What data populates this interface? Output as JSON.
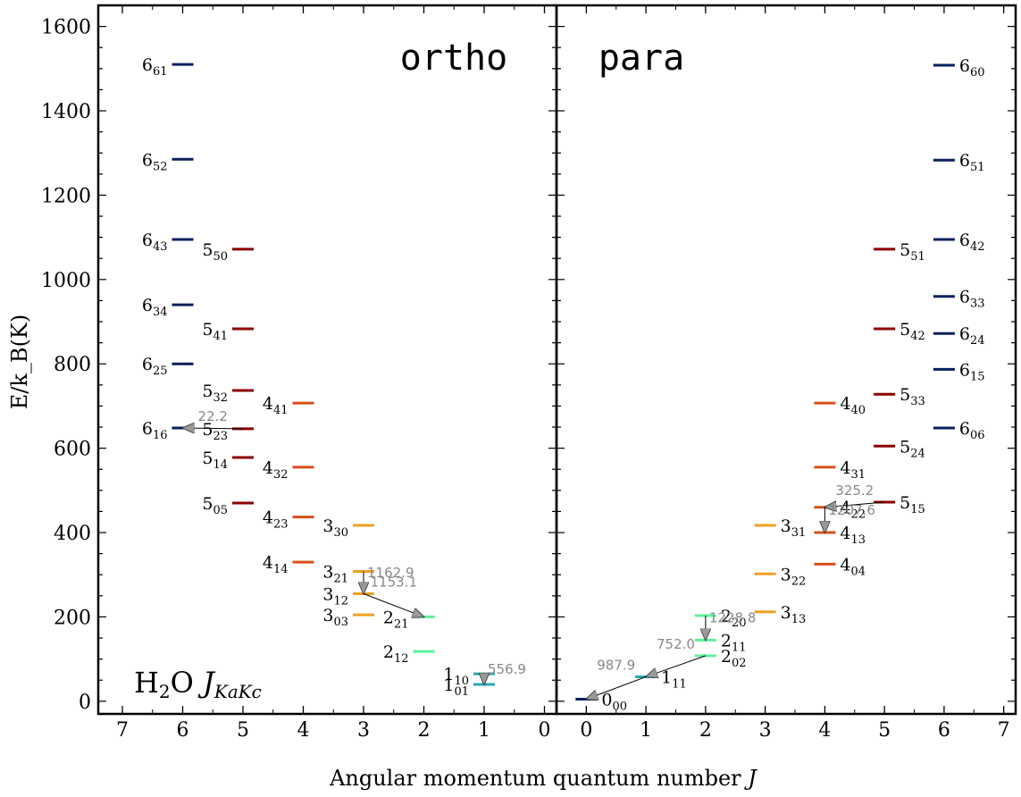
{
  "chart_data": {
    "type": "energy-level-diagram",
    "xlabel_prefix": "Angular momentum quantum number ",
    "xlabel_var": "J",
    "ylabel": "E/k_B(K)",
    "ylim": [
      -30,
      1650
    ],
    "yticks": [
      "0",
      "200",
      "400",
      "600",
      "800",
      "1000",
      "1200",
      "1400",
      "1600"
    ],
    "molecule_label": {
      "main": "H",
      "sub2": "2",
      "main2": "O",
      "j": "J",
      "sub": "KaKc"
    },
    "colors": {
      "6": "#0a1f5c",
      "5": "#8b0000",
      "4": "#d6501a",
      "3": "#f0a020",
      "2": "#5cf29b",
      "1": "#2aa8b0",
      "0": "#0a1f5c"
    },
    "panels": [
      {
        "name": "ortho",
        "title": "ortho",
        "xlim": [
          7.4,
          -0.2
        ],
        "xticks": [
          "7",
          "6",
          "5",
          "4",
          "3",
          "2",
          "1",
          "0"
        ],
        "levels": [
          {
            "J": 6,
            "Ka": "6",
            "Kc": "1",
            "E": 1510,
            "side": "left"
          },
          {
            "J": 6,
            "Ka": "5",
            "Kc": "2",
            "E": 1285,
            "side": "left"
          },
          {
            "J": 6,
            "Ka": "4",
            "Kc": "3",
            "E": 1095,
            "side": "left"
          },
          {
            "J": 6,
            "Ka": "3",
            "Kc": "4",
            "E": 940,
            "side": "left"
          },
          {
            "J": 6,
            "Ka": "2",
            "Kc": "5",
            "E": 800,
            "side": "left"
          },
          {
            "J": 6,
            "Ka": "1",
            "Kc": "6",
            "E": 648,
            "side": "left"
          },
          {
            "J": 5,
            "Ka": "5",
            "Kc": "0",
            "E": 1072,
            "side": "left"
          },
          {
            "J": 5,
            "Ka": "4",
            "Kc": "1",
            "E": 883,
            "side": "left"
          },
          {
            "J": 5,
            "Ka": "3",
            "Kc": "2",
            "E": 737,
            "side": "left"
          },
          {
            "J": 5,
            "Ka": "2",
            "Kc": "3",
            "E": 646,
            "side": "left"
          },
          {
            "J": 5,
            "Ka": "1",
            "Kc": "4",
            "E": 578,
            "side": "left"
          },
          {
            "J": 5,
            "Ka": "0",
            "Kc": "5",
            "E": 470,
            "side": "left"
          },
          {
            "J": 4,
            "Ka": "4",
            "Kc": "1",
            "E": 707,
            "side": "left"
          },
          {
            "J": 4,
            "Ka": "3",
            "Kc": "2",
            "E": 555,
            "side": "left"
          },
          {
            "J": 4,
            "Ka": "2",
            "Kc": "3",
            "E": 437,
            "side": "left"
          },
          {
            "J": 4,
            "Ka": "1",
            "Kc": "4",
            "E": 330,
            "side": "left"
          },
          {
            "J": 3,
            "Ka": "3",
            "Kc": "0",
            "E": 417,
            "side": "left"
          },
          {
            "J": 3,
            "Ka": "2",
            "Kc": "1",
            "E": 308,
            "side": "left"
          },
          {
            "J": 3,
            "Ka": "1",
            "Kc": "2",
            "E": 255,
            "side": "left"
          },
          {
            "J": 3,
            "Ka": "0",
            "Kc": "3",
            "E": 205,
            "side": "left"
          },
          {
            "J": 2,
            "Ka": "2",
            "Kc": "1",
            "E": 200,
            "side": "left"
          },
          {
            "J": 2,
            "Ka": "1",
            "Kc": "2",
            "E": 118,
            "side": "left"
          },
          {
            "J": 1,
            "Ka": "1",
            "Kc": "0",
            "E": 65,
            "side": "left"
          },
          {
            "J": 1,
            "Ka": "0",
            "Kc": "1",
            "E": 40,
            "side": "left"
          }
        ],
        "transitions": [
          {
            "label": "22.2",
            "fromJ": 5,
            "fromE": 646,
            "toJ": 6,
            "toE": 648
          },
          {
            "label": "1162.9",
            "fromJ": 3,
            "fromE": 308,
            "toJ": 3,
            "toE": 255
          },
          {
            "label": "1153.1",
            "fromJ": 3,
            "fromE": 255,
            "toJ": 2,
            "toE": 200
          },
          {
            "label": "556.9",
            "fromJ": 1,
            "fromE": 65,
            "toJ": 1,
            "toE": 40
          }
        ]
      },
      {
        "name": "para",
        "title": "para",
        "xlim": [
          -0.5,
          7.2
        ],
        "xticks": [
          "0",
          "1",
          "2",
          "3",
          "4",
          "5",
          "6",
          "7"
        ],
        "levels": [
          {
            "J": 6,
            "Ka": "6",
            "Kc": "0",
            "E": 1508,
            "side": "right"
          },
          {
            "J": 6,
            "Ka": "5",
            "Kc": "1",
            "E": 1283,
            "side": "right"
          },
          {
            "J": 6,
            "Ka": "4",
            "Kc": "2",
            "E": 1095,
            "side": "right"
          },
          {
            "J": 6,
            "Ka": "3",
            "Kc": "3",
            "E": 960,
            "side": "right"
          },
          {
            "J": 6,
            "Ka": "2",
            "Kc": "4",
            "E": 872,
            "side": "right"
          },
          {
            "J": 6,
            "Ka": "1",
            "Kc": "5",
            "E": 787,
            "side": "right"
          },
          {
            "J": 6,
            "Ka": "0",
            "Kc": "6",
            "E": 648,
            "side": "right"
          },
          {
            "J": 5,
            "Ka": "5",
            "Kc": "1",
            "E": 1072,
            "side": "right"
          },
          {
            "J": 5,
            "Ka": "4",
            "Kc": "2",
            "E": 883,
            "side": "right"
          },
          {
            "J": 5,
            "Ka": "3",
            "Kc": "3",
            "E": 728,
            "side": "right"
          },
          {
            "J": 5,
            "Ka": "2",
            "Kc": "4",
            "E": 605,
            "side": "right"
          },
          {
            "J": 5,
            "Ka": "1",
            "Kc": "5",
            "E": 472,
            "side": "right"
          },
          {
            "J": 4,
            "Ka": "4",
            "Kc": "0",
            "E": 707,
            "side": "right"
          },
          {
            "J": 4,
            "Ka": "3",
            "Kc": "1",
            "E": 555,
            "side": "right"
          },
          {
            "J": 4,
            "Ka": "2",
            "Kc": "2",
            "E": 460,
            "side": "right"
          },
          {
            "J": 4,
            "Ka": "1",
            "Kc": "3",
            "E": 400,
            "side": "right"
          },
          {
            "J": 4,
            "Ka": "0",
            "Kc": "4",
            "E": 325,
            "side": "right"
          },
          {
            "J": 3,
            "Ka": "3",
            "Kc": "1",
            "E": 417,
            "side": "right"
          },
          {
            "J": 3,
            "Ka": "2",
            "Kc": "2",
            "E": 302,
            "side": "right"
          },
          {
            "J": 3,
            "Ka": "1",
            "Kc": "3",
            "E": 212,
            "side": "right"
          },
          {
            "J": 2,
            "Ka": "2",
            "Kc": "0",
            "E": 203,
            "side": "right"
          },
          {
            "J": 2,
            "Ka": "1",
            "Kc": "1",
            "E": 145,
            "side": "right"
          },
          {
            "J": 2,
            "Ka": "0",
            "Kc": "2",
            "E": 108,
            "side": "right"
          },
          {
            "J": 1,
            "Ka": "1",
            "Kc": "1",
            "E": 58,
            "side": "right"
          },
          {
            "J": 0,
            "Ka": "0",
            "Kc": "0",
            "E": 5,
            "side": "right"
          }
        ],
        "transitions": [
          {
            "label": "325.2",
            "fromJ": 5,
            "fromE": 472,
            "toJ": 4,
            "toE": 460
          },
          {
            "label": "1207.6",
            "fromJ": 4,
            "fromE": 460,
            "toJ": 4,
            "toE": 400
          },
          {
            "label": "1228.8",
            "fromJ": 2,
            "fromE": 203,
            "toJ": 2,
            "toE": 145
          },
          {
            "label": "752.0",
            "fromJ": 2,
            "fromE": 108,
            "toJ": 1,
            "toE": 58
          },
          {
            "label": "987.9",
            "fromJ": 1,
            "fromE": 58,
            "toJ": 0,
            "toE": 5
          }
        ]
      }
    ]
  }
}
